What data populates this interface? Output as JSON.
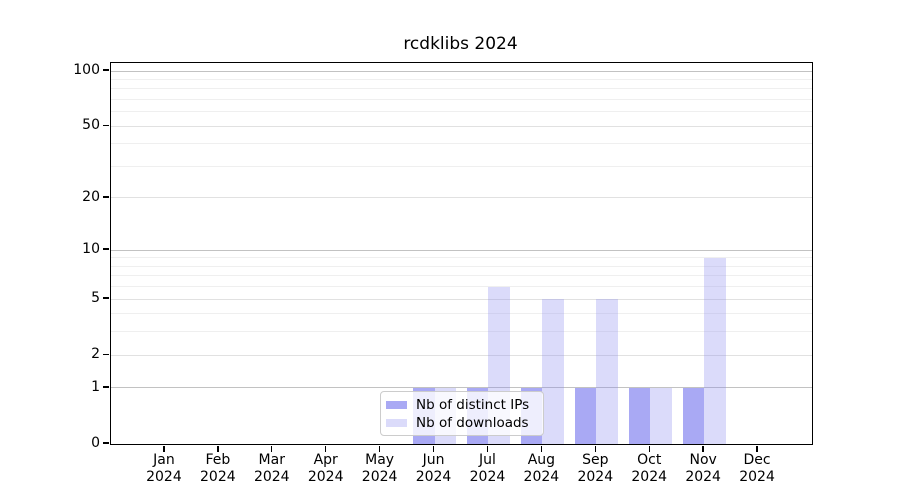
{
  "chart_data": {
    "type": "bar",
    "title": "rcdklibs 2024",
    "categories": [
      "Jan",
      "Feb",
      "Mar",
      "Apr",
      "May",
      "Jun",
      "Jul",
      "Aug",
      "Sep",
      "Oct",
      "Nov",
      "Dec"
    ],
    "year_label": "2024",
    "series": [
      {
        "name": "Nb of distinct IPs",
        "color": "rgba(136,136,240,0.72)",
        "values": [
          0,
          0,
          0,
          0,
          0,
          1,
          1,
          1,
          1,
          1,
          1,
          0
        ]
      },
      {
        "name": "Nb of downloads",
        "color": "rgba(136,136,240,0.30)",
        "values": [
          0,
          0,
          0,
          0,
          0,
          1,
          6,
          5,
          5,
          1,
          9,
          0
        ]
      }
    ],
    "xlabel": "",
    "ylabel": "",
    "yticks": [
      0,
      1,
      2,
      5,
      10,
      20,
      50,
      100
    ],
    "minor_gridlines": [
      3,
      4,
      6,
      7,
      8,
      9,
      30,
      40,
      60,
      70,
      80,
      90
    ],
    "scale": "log1p",
    "ylim": [
      0,
      100
    ],
    "grid": true,
    "legend_position": "lower center"
  },
  "colors": {
    "grid_decade": "#c2c2c2",
    "grid_mid": "#e1e1e1",
    "grid_minor": "#efefef",
    "spine": "#000000",
    "text": "#000000",
    "legend_border": "#cccccc",
    "legend_bg": "rgba(255,255,255,0.8)"
  }
}
